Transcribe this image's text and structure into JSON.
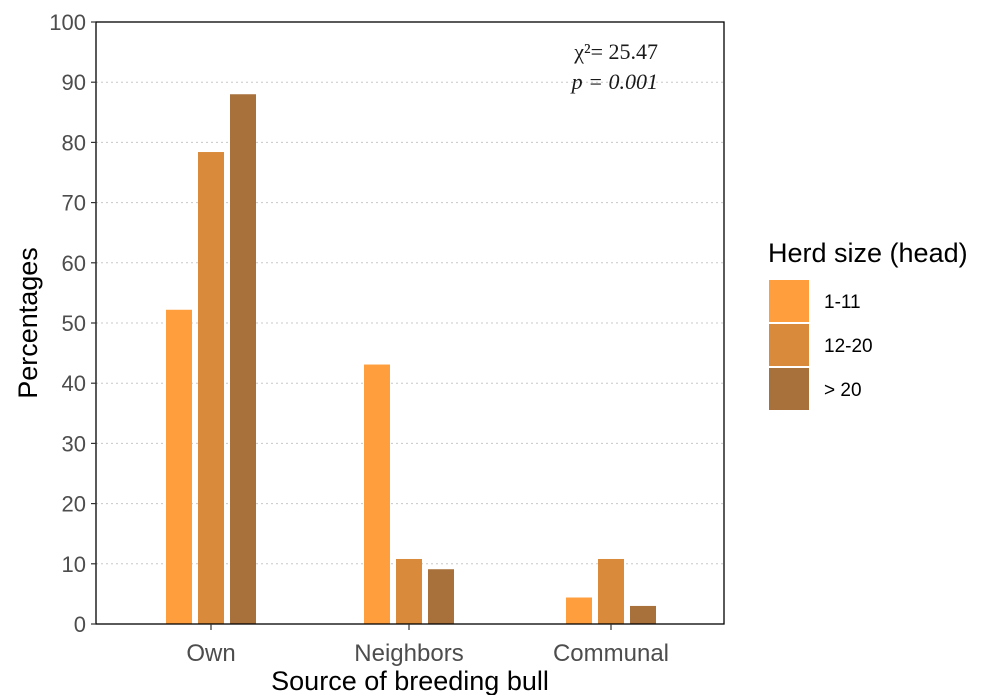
{
  "chart_data": {
    "type": "bar",
    "title": "",
    "xlabel": "Source of breeding bull",
    "ylabel": "Percentages",
    "ylim": [
      0,
      100
    ],
    "yticks": [
      0,
      10,
      20,
      30,
      40,
      50,
      60,
      70,
      80,
      90,
      100
    ],
    "grid": "horizontal-dotted",
    "legend_position": "right",
    "legend_title": "Herd size (head)",
    "categories": [
      "Own",
      "Neighbors",
      "Communal"
    ],
    "series": [
      {
        "name": "1-11",
        "color": "#FF9E3D",
        "values": [
          52.2,
          43.1,
          4.4
        ]
      },
      {
        "name": "12-20",
        "color": "#D98B3B",
        "values": [
          78.4,
          10.8,
          10.8
        ]
      },
      {
        "name": "> 20",
        "color": "#A8713C",
        "values": [
          88.0,
          9.1,
          3.0
        ]
      }
    ],
    "annotations": {
      "chi_square": "χ²= 25.47",
      "p_value": "p = 0.001"
    }
  }
}
